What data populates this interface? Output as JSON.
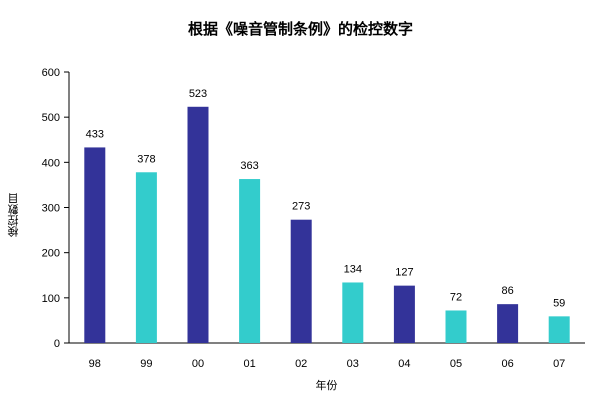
{
  "chart_data": {
    "type": "bar",
    "title": "根据《噪音管制条例》的检控数字",
    "xlabel": "年份",
    "ylabel": "検控數目",
    "categories": [
      "98",
      "99",
      "00",
      "01",
      "02",
      "03",
      "04",
      "05",
      "06",
      "07"
    ],
    "values": [
      433,
      378,
      523,
      363,
      273,
      134,
      127,
      72,
      86,
      59
    ],
    "bar_colors": [
      "#333399",
      "#33CCCC",
      "#333399",
      "#33CCCC",
      "#333399",
      "#33CCCC",
      "#333399",
      "#33CCCC",
      "#333399",
      "#33CCCC"
    ],
    "ylim": [
      0,
      600
    ],
    "yticks": [
      0,
      100,
      200,
      300,
      400,
      500,
      600
    ],
    "grid": false,
    "legend": null,
    "data_labels": true
  }
}
